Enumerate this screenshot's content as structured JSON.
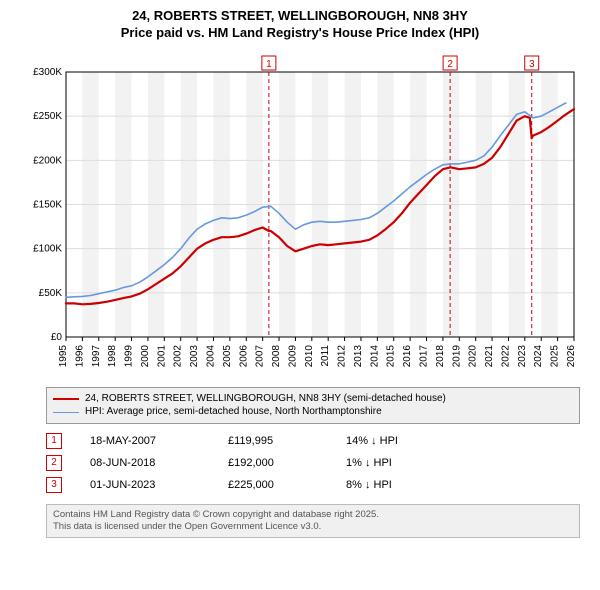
{
  "title": {
    "line1": "24, ROBERTS STREET, WELLINGBOROUGH, NN8 3HY",
    "line2": "Price paid vs. HM Land Registry's House Price Index (HPI)",
    "fontsize": 13,
    "fontweight": "bold",
    "color": "#000000"
  },
  "chart": {
    "type": "line",
    "background_color": "#ffffff",
    "grid_color": "#dddddd",
    "year_band_color": "#f2f2f2",
    "axis_color": "#000000",
    "x_axis": {
      "min": 1995,
      "max": 2026,
      "tick_step": 1,
      "label_fontsize": 10,
      "label_rotation": -90
    },
    "y_axis": {
      "min": 0,
      "max": 300000,
      "tick_step": 50000,
      "tick_labels": [
        "£0",
        "£50K",
        "£100K",
        "£150K",
        "£200K",
        "£250K",
        "£300K"
      ],
      "label_fontsize": 10
    },
    "series": [
      {
        "name": "property",
        "label": "24, ROBERTS STREET, WELLINGBOROUGH, NN8 3HY (semi-detached house)",
        "color": "#cc0000",
        "line_width": 2.2,
        "points": [
          [
            1995.0,
            38000
          ],
          [
            1995.5,
            38000
          ],
          [
            1996.0,
            37000
          ],
          [
            1996.5,
            37500
          ],
          [
            1997.0,
            38500
          ],
          [
            1997.5,
            40000
          ],
          [
            1998.0,
            42000
          ],
          [
            1998.5,
            44000
          ],
          [
            1999.0,
            46000
          ],
          [
            1999.5,
            49000
          ],
          [
            2000.0,
            54000
          ],
          [
            2000.5,
            60000
          ],
          [
            2001.0,
            66000
          ],
          [
            2001.5,
            72000
          ],
          [
            2002.0,
            80000
          ],
          [
            2002.5,
            90000
          ],
          [
            2003.0,
            100000
          ],
          [
            2003.5,
            106000
          ],
          [
            2004.0,
            110000
          ],
          [
            2004.5,
            113000
          ],
          [
            2005.0,
            113000
          ],
          [
            2005.5,
            114000
          ],
          [
            2006.0,
            117000
          ],
          [
            2006.5,
            121000
          ],
          [
            2007.0,
            124000
          ],
          [
            2007.38,
            119995
          ],
          [
            2007.5,
            120000
          ],
          [
            2008.0,
            113000
          ],
          [
            2008.5,
            103000
          ],
          [
            2009.0,
            97000
          ],
          [
            2009.5,
            100000
          ],
          [
            2010.0,
            103000
          ],
          [
            2010.5,
            105000
          ],
          [
            2011.0,
            104000
          ],
          [
            2011.5,
            105000
          ],
          [
            2012.0,
            106000
          ],
          [
            2012.5,
            107000
          ],
          [
            2013.0,
            108000
          ],
          [
            2013.5,
            110000
          ],
          [
            2014.0,
            115000
          ],
          [
            2014.5,
            122000
          ],
          [
            2015.0,
            130000
          ],
          [
            2015.5,
            140000
          ],
          [
            2016.0,
            152000
          ],
          [
            2016.5,
            162000
          ],
          [
            2017.0,
            172000
          ],
          [
            2017.5,
            182000
          ],
          [
            2018.0,
            190000
          ],
          [
            2018.44,
            192000
          ],
          [
            2018.5,
            192000
          ],
          [
            2019.0,
            190000
          ],
          [
            2019.5,
            191000
          ],
          [
            2020.0,
            192000
          ],
          [
            2020.5,
            196000
          ],
          [
            2021.0,
            203000
          ],
          [
            2021.5,
            215000
          ],
          [
            2022.0,
            230000
          ],
          [
            2022.5,
            245000
          ],
          [
            2023.0,
            250000
          ],
          [
            2023.3,
            248000
          ],
          [
            2023.42,
            225000
          ],
          [
            2023.5,
            228000
          ],
          [
            2024.0,
            232000
          ],
          [
            2024.5,
            238000
          ],
          [
            2025.0,
            245000
          ],
          [
            2025.5,
            252000
          ],
          [
            2026.0,
            258000
          ]
        ]
      },
      {
        "name": "hpi",
        "label": "HPI: Average price, semi-detached house, North Northamptonshire",
        "color": "#6699dd",
        "line_width": 1.6,
        "points": [
          [
            1995.0,
            45000
          ],
          [
            1995.5,
            45500
          ],
          [
            1996.0,
            46000
          ],
          [
            1996.5,
            47000
          ],
          [
            1997.0,
            49000
          ],
          [
            1997.5,
            51000
          ],
          [
            1998.0,
            53000
          ],
          [
            1998.5,
            56000
          ],
          [
            1999.0,
            58000
          ],
          [
            1999.5,
            62000
          ],
          [
            2000.0,
            68000
          ],
          [
            2000.5,
            75000
          ],
          [
            2001.0,
            82000
          ],
          [
            2001.5,
            90000
          ],
          [
            2002.0,
            100000
          ],
          [
            2002.5,
            112000
          ],
          [
            2003.0,
            122000
          ],
          [
            2003.5,
            128000
          ],
          [
            2004.0,
            132000
          ],
          [
            2004.5,
            135000
          ],
          [
            2005.0,
            134000
          ],
          [
            2005.5,
            135000
          ],
          [
            2006.0,
            138000
          ],
          [
            2006.5,
            142000
          ],
          [
            2007.0,
            147000
          ],
          [
            2007.5,
            148000
          ],
          [
            2008.0,
            140000
          ],
          [
            2008.5,
            130000
          ],
          [
            2009.0,
            122000
          ],
          [
            2009.5,
            127000
          ],
          [
            2010.0,
            130000
          ],
          [
            2010.5,
            131000
          ],
          [
            2011.0,
            130000
          ],
          [
            2011.5,
            130000
          ],
          [
            2012.0,
            131000
          ],
          [
            2012.5,
            132000
          ],
          [
            2013.0,
            133000
          ],
          [
            2013.5,
            135000
          ],
          [
            2014.0,
            140000
          ],
          [
            2014.5,
            147000
          ],
          [
            2015.0,
            154000
          ],
          [
            2015.5,
            162000
          ],
          [
            2016.0,
            170000
          ],
          [
            2016.5,
            177000
          ],
          [
            2017.0,
            184000
          ],
          [
            2017.5,
            190000
          ],
          [
            2018.0,
            195000
          ],
          [
            2018.5,
            196000
          ],
          [
            2019.0,
            196000
          ],
          [
            2019.5,
            198000
          ],
          [
            2020.0,
            200000
          ],
          [
            2020.5,
            205000
          ],
          [
            2021.0,
            215000
          ],
          [
            2021.5,
            228000
          ],
          [
            2022.0,
            240000
          ],
          [
            2022.5,
            252000
          ],
          [
            2023.0,
            255000
          ],
          [
            2023.5,
            248000
          ],
          [
            2024.0,
            250000
          ],
          [
            2024.5,
            255000
          ],
          [
            2025.0,
            260000
          ],
          [
            2025.5,
            265000
          ]
        ]
      }
    ],
    "event_markers": [
      {
        "n": 1,
        "year": 2007.38,
        "label": "1",
        "color": "#cc0000",
        "dash": "4,3"
      },
      {
        "n": 2,
        "year": 2018.44,
        "label": "2",
        "color": "#cc0000",
        "dash": "4,3"
      },
      {
        "n": 3,
        "year": 2023.42,
        "label": "3",
        "color": "#cc0000",
        "dash": "4,3"
      }
    ],
    "marker_box": {
      "fill": "#ffffff",
      "stroke_width": 1,
      "fontsize": 10
    }
  },
  "legend": {
    "background": "#f0f0f0",
    "border_color": "#999999",
    "fontsize": 10,
    "items": [
      {
        "color": "#cc0000",
        "width": 2.5,
        "label": "24, ROBERTS STREET, WELLINGBOROUGH, NN8 3HY (semi-detached house)"
      },
      {
        "color": "#6699dd",
        "width": 1.6,
        "label": "HPI: Average price, semi-detached house, North Northamptonshire"
      }
    ]
  },
  "events_table": {
    "fontsize": 11,
    "rows": [
      {
        "n": "1",
        "color": "#cc0000",
        "date": "18-MAY-2007",
        "price": "£119,995",
        "diff": "14% ↓ HPI"
      },
      {
        "n": "2",
        "color": "#cc0000",
        "date": "08-JUN-2018",
        "price": "£192,000",
        "diff": "1% ↓ HPI"
      },
      {
        "n": "3",
        "color": "#cc0000",
        "date": "01-JUN-2023",
        "price": "£225,000",
        "diff": "8% ↓ HPI"
      }
    ]
  },
  "attribution": {
    "line1": "Contains HM Land Registry data © Crown copyright and database right 2025.",
    "line2": "This data is licensed under the Open Government Licence v3.0.",
    "background": "#f0f0f0",
    "border_color": "#bbbbbb",
    "color": "#555555",
    "fontsize": 9.5
  }
}
